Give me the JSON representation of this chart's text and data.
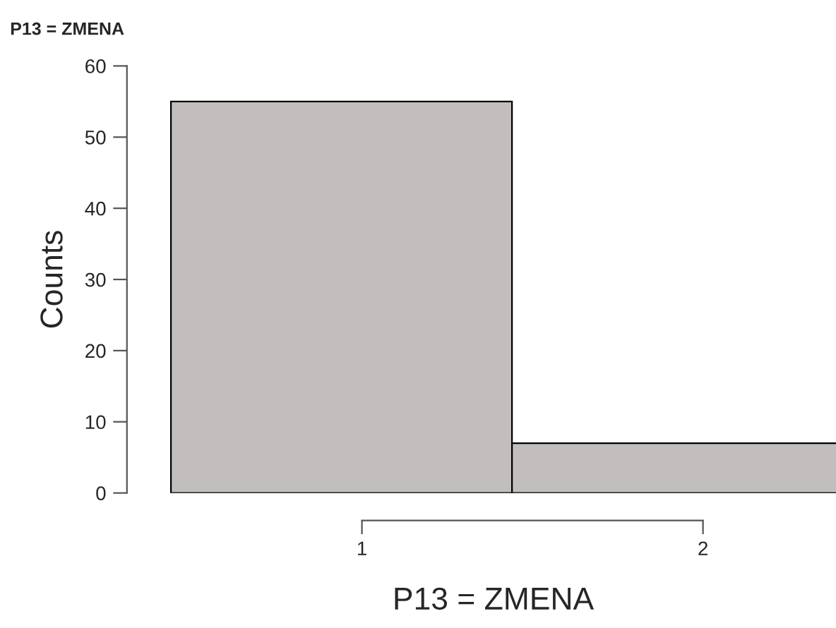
{
  "chart_data": {
    "type": "bar",
    "title": "P13 = ZMENA",
    "xlabel": "P13 = ZMENA",
    "ylabel": "Counts",
    "categories": [
      "1",
      "2"
    ],
    "values": [
      55,
      7
    ],
    "color": "#c1bebd",
    "ylim": [
      0,
      60
    ],
    "yticks": [
      0,
      10,
      20,
      30,
      40,
      50,
      60
    ],
    "grid": false,
    "legend": false
  }
}
